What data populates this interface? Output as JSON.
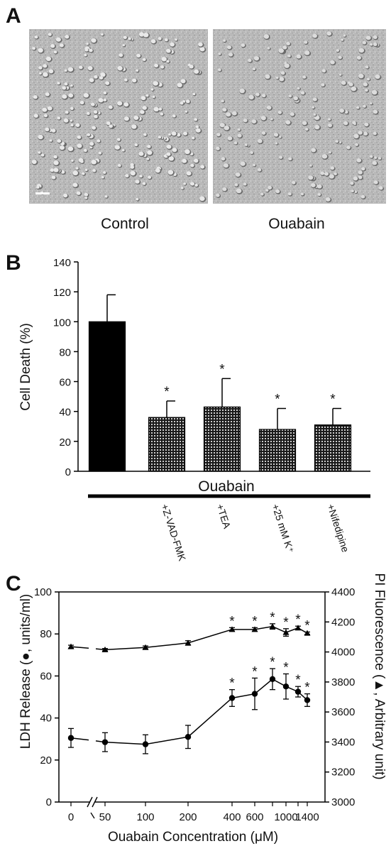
{
  "panel_a": {
    "letter": "A",
    "captions": [
      "Control",
      "Ouabain"
    ]
  },
  "chart_data": [
    {
      "panel": "B",
      "type": "bar",
      "ylabel": "Cell Death (%)",
      "ylim": [
        0,
        140
      ],
      "yticks": [
        0,
        20,
        40,
        60,
        80,
        100,
        120,
        140
      ],
      "group_label": "Ouabain",
      "categories": [
        "",
        "+Z-VAD-FMK",
        "+TEA",
        "+25 mM K⁺",
        "+Nifedipine"
      ],
      "values": [
        100,
        36,
        43,
        28,
        31
      ],
      "errors": [
        18,
        11,
        19,
        14,
        11
      ],
      "significant": [
        false,
        true,
        true,
        true,
        true
      ],
      "significance_symbol": "*",
      "colors": {
        "control": "#000000",
        "treated": "#1a1a1a",
        "treated_dots": "#ffffff"
      }
    },
    {
      "panel": "C",
      "type": "line",
      "xlabel": "Ouabain Concentration (μM)",
      "ylabel_left": "LDH Release (●, units/ml)",
      "ylabel_right": "PI Fluorescence (▲, Arbitrary unit)",
      "x": [
        0,
        50,
        100,
        200,
        400,
        600,
        800,
        1000,
        1200,
        1400
      ],
      "xtick_labels": [
        "0",
        "50",
        "100",
        "200",
        "400",
        "600",
        "800",
        "1000",
        "1200",
        "1400"
      ],
      "xtick_shown": [
        true,
        true,
        true,
        true,
        true,
        true,
        false,
        true,
        false,
        true
      ],
      "ylim_left": [
        0,
        100
      ],
      "yticks_left": [
        0,
        20,
        40,
        60,
        80,
        100
      ],
      "ylim_right": [
        3000,
        4400
      ],
      "yticks_right": [
        3000,
        3200,
        3400,
        3600,
        3800,
        4000,
        4200,
        4400
      ],
      "series": [
        {
          "axis": "left",
          "marker": "circle",
          "values": [
            30.5,
            28.5,
            27.5,
            31,
            49.5,
            51.5,
            58.5,
            55,
            52.5,
            48.5
          ],
          "errors": [
            4.5,
            4.5,
            4.5,
            5.5,
            4,
            7.5,
            5,
            6,
            2.5,
            3
          ],
          "significant": [
            false,
            false,
            false,
            false,
            true,
            true,
            true,
            true,
            true,
            true
          ]
        },
        {
          "axis": "right",
          "marker": "triangle",
          "values": [
            4035,
            4015,
            4030,
            4060,
            4150,
            4150,
            4170,
            4130,
            4160,
            4125
          ],
          "errors": [
            10,
            8,
            10,
            15,
            12,
            12,
            18,
            25,
            12,
            8
          ],
          "significant": [
            false,
            false,
            false,
            false,
            true,
            true,
            true,
            true,
            true,
            true
          ]
        }
      ],
      "significance_symbol": "*"
    }
  ]
}
